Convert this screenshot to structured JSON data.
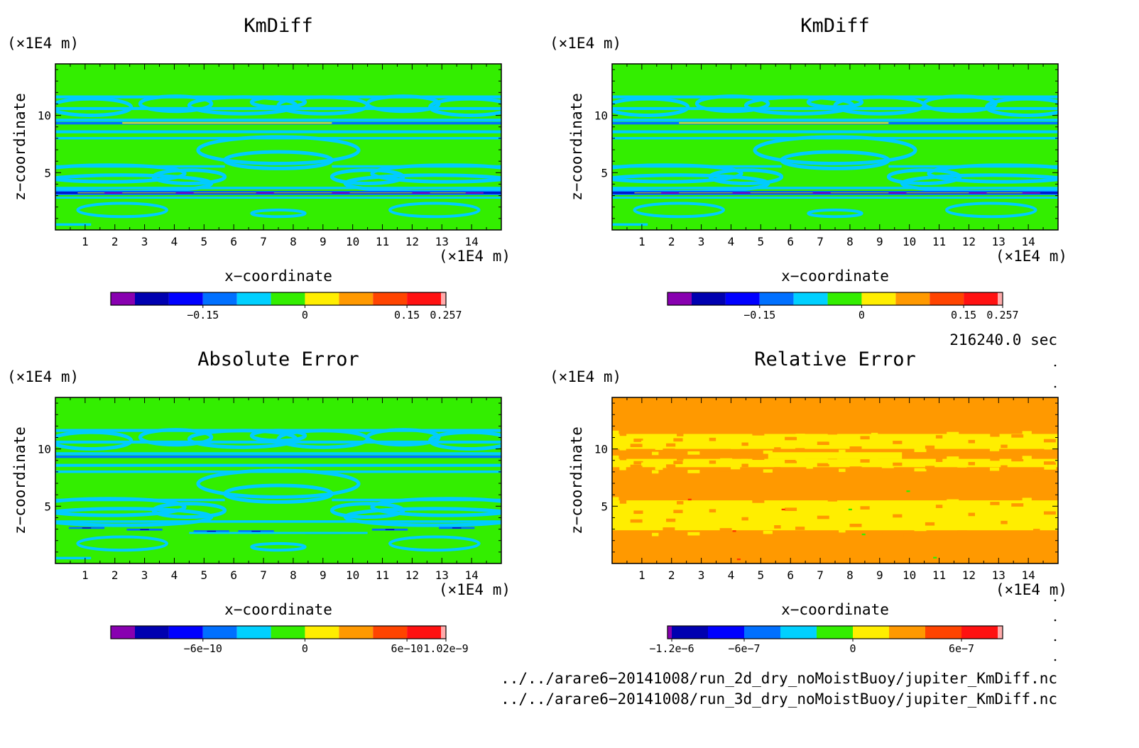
{
  "panels": [
    {
      "title": "KmDiff",
      "xlabel": "x−coordinate",
      "ylabel": "z−coordinate",
      "xunit": "(×1E4 m)",
      "yunit": "(×1E4 m)",
      "field": "kmdiff",
      "colorbar": {
        "colors": [
          "#8800b0",
          "#0000b0",
          "#0000ff",
          "#0070ff",
          "#00d0ff",
          "#33ee00",
          "#ffee00",
          "#ff9900",
          "#ff4400",
          "#ff1111",
          "#ffaaaa"
        ],
        "tick_labels": [
          "−0.15",
          "0",
          "0.15",
          "0.257"
        ],
        "tick_after_box": [
          2,
          5,
          8,
          11
        ]
      }
    },
    {
      "title": "KmDiff",
      "xlabel": "x−coordinate",
      "ylabel": "z−coordinate",
      "xunit": "(×1E4 m)",
      "yunit": "(×1E4 m)",
      "field": "kmdiff",
      "colorbar": {
        "colors": [
          "#8800b0",
          "#0000b0",
          "#0000ff",
          "#0070ff",
          "#00d0ff",
          "#33ee00",
          "#ffee00",
          "#ff9900",
          "#ff4400",
          "#ff1111",
          "#ffaaaa"
        ],
        "tick_labels": [
          "−0.15",
          "0",
          "0.15",
          "0.257"
        ],
        "tick_after_box": [
          2,
          5,
          8,
          11
        ]
      }
    },
    {
      "title": "Absolute Error",
      "xlabel": "x−coordinate",
      "ylabel": "z−coordinate",
      "xunit": "(×1E4 m)",
      "yunit": "(×1E4 m)",
      "field": "abserr",
      "colorbar": {
        "colors": [
          "#8800b0",
          "#0000b0",
          "#0000ff",
          "#0070ff",
          "#00d0ff",
          "#33ee00",
          "#ffee00",
          "#ff9900",
          "#ff4400",
          "#ff1111",
          "#ffaaaa"
        ],
        "tick_labels": [
          "−6e−10",
          "0",
          "6e−10",
          "1.02e−9"
        ],
        "tick_after_box": [
          2,
          5,
          8,
          11
        ]
      }
    },
    {
      "title": "Relative Error",
      "xlabel": "x−coordinate",
      "ylabel": "z−coordinate",
      "xunit": "(×1E4 m)",
      "yunit": "(×1E4 m)",
      "field": "relerr",
      "colorbar": {
        "colors": [
          "#8800b0",
          "#0000b0",
          "#0000ff",
          "#0070ff",
          "#00d0ff",
          "#33ee00",
          "#ffee00",
          "#ff9900",
          "#ff4400",
          "#ff1111",
          "#ffaaaa"
        ],
        "tick_labels": [
          "−1.2e−6",
          "−6e−7",
          "0",
          "6e−7"
        ],
        "tick_after_box": [
          0,
          2,
          5,
          8
        ]
      }
    }
  ],
  "chart_data": [
    {
      "type": "heatmap",
      "title": "KmDiff",
      "xlabel": "x−coordinate",
      "ylabel": "z−coordinate",
      "x_ticks": [
        1,
        2,
        3,
        4,
        5,
        6,
        7,
        8,
        9,
        10,
        11,
        12,
        13,
        14
      ],
      "y_ticks": [
        5,
        10
      ],
      "xlim": [
        0,
        15
      ],
      "ylim": [
        0,
        14.5
      ],
      "colorbar_ticks": [
        -0.15,
        0,
        0.15,
        0.257
      ]
    },
    {
      "type": "heatmap",
      "title": "KmDiff",
      "xlabel": "x−coordinate",
      "ylabel": "z−coordinate",
      "x_ticks": [
        1,
        2,
        3,
        4,
        5,
        6,
        7,
        8,
        9,
        10,
        11,
        12,
        13,
        14
      ],
      "y_ticks": [
        5,
        10
      ],
      "xlim": [
        0,
        15
      ],
      "ylim": [
        0,
        14.5
      ],
      "colorbar_ticks": [
        -0.15,
        0,
        0.15,
        0.257
      ]
    },
    {
      "type": "heatmap",
      "title": "Absolute Error",
      "xlabel": "x−coordinate",
      "ylabel": "z−coordinate",
      "x_ticks": [
        1,
        2,
        3,
        4,
        5,
        6,
        7,
        8,
        9,
        10,
        11,
        12,
        13,
        14
      ],
      "y_ticks": [
        5,
        10
      ],
      "xlim": [
        0,
        15
      ],
      "ylim": [
        0,
        14.5
      ],
      "colorbar_ticks": [
        -6e-10,
        0,
        6e-10,
        1.02e-09
      ]
    },
    {
      "type": "heatmap",
      "title": "Relative Error",
      "xlabel": "x−coordinate",
      "ylabel": "z−coordinate",
      "x_ticks": [
        1,
        2,
        3,
        4,
        5,
        6,
        7,
        8,
        9,
        10,
        11,
        12,
        13,
        14
      ],
      "y_ticks": [
        5,
        10
      ],
      "xlim": [
        0,
        15
      ],
      "ylim": [
        0,
        14.5
      ],
      "colorbar_ticks": [
        -1.2e-06,
        -6e-07,
        0,
        6e-07
      ]
    }
  ],
  "time_label": "216240.0 sec",
  "file_paths": [
    "../../arare6−20141008/run_2d_dry_noMoistBuoy/jupiter_KmDiff.nc",
    "../../arare6−20141008/run_3d_dry_noMoistBuoy/jupiter_KmDiff.nc"
  ]
}
